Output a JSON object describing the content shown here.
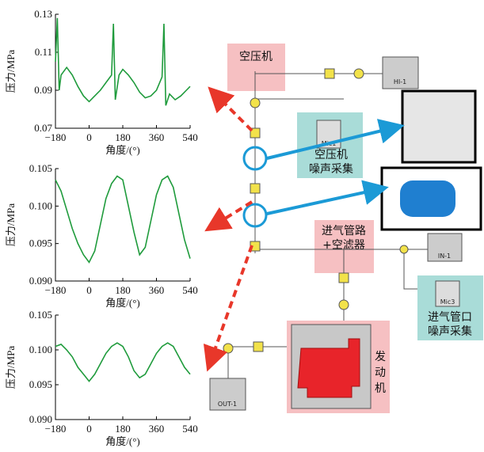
{
  "chart_data": [
    {
      "type": "line",
      "color": "#1f9b3c",
      "xlabel": "角度/(°)",
      "ylabel": "压力/MPa",
      "x": [
        -180,
        -170,
        -160,
        -150,
        -120,
        -90,
        -60,
        -30,
        0,
        30,
        60,
        90,
        120,
        130,
        140,
        160,
        180,
        210,
        240,
        270,
        300,
        330,
        360,
        390,
        400,
        410,
        430,
        460,
        490,
        520,
        540
      ],
      "values": [
        0.105,
        0.128,
        0.09,
        0.098,
        0.102,
        0.098,
        0.092,
        0.087,
        0.084,
        0.087,
        0.09,
        0.094,
        0.098,
        0.125,
        0.085,
        0.098,
        0.101,
        0.098,
        0.094,
        0.089,
        0.086,
        0.087,
        0.09,
        0.097,
        0.125,
        0.082,
        0.088,
        0.085,
        0.087,
        0.09,
        0.092
      ],
      "xlim": [
        -180,
        540
      ],
      "ylim": [
        0.07,
        0.13
      ],
      "xticks": [
        {
          "value": -180,
          "label": "−180"
        },
        0,
        180,
        360,
        540
      ],
      "yticks": [
        0.07,
        0.09,
        0.11,
        0.13
      ]
    },
    {
      "type": "line",
      "color": "#1f9b3c",
      "xlabel": "角度/(°)",
      "ylabel": "压力/MPa",
      "x": [
        -180,
        -150,
        -120,
        -90,
        -60,
        -30,
        0,
        30,
        60,
        90,
        120,
        150,
        180,
        210,
        240,
        270,
        300,
        330,
        360,
        390,
        420,
        450,
        480,
        510,
        540
      ],
      "values": [
        0.1035,
        0.102,
        0.0995,
        0.097,
        0.095,
        0.0935,
        0.0925,
        0.094,
        0.0975,
        0.101,
        0.103,
        0.104,
        0.1035,
        0.1,
        0.0965,
        0.0935,
        0.0945,
        0.098,
        0.1015,
        0.1035,
        0.104,
        0.1025,
        0.099,
        0.0955,
        0.093
      ],
      "xlim": [
        -180,
        540
      ],
      "ylim": [
        0.09,
        0.105
      ],
      "xticks": [
        {
          "value": -180,
          "label": "−180"
        },
        0,
        180,
        360,
        540
      ],
      "yticks": [
        {
          "value": 0.09,
          "label": "0.090"
        },
        {
          "value": 0.095,
          "label": "0.095"
        },
        {
          "value": 0.1,
          "label": "0.100"
        },
        {
          "value": 0.105,
          "label": "0.105"
        }
      ]
    },
    {
      "type": "line",
      "color": "#1f9b3c",
      "xlabel": "角度/(°)",
      "ylabel": "压力/MPa",
      "x": [
        -180,
        -150,
        -120,
        -90,
        -60,
        -30,
        0,
        30,
        60,
        90,
        120,
        150,
        180,
        210,
        240,
        270,
        300,
        330,
        360,
        390,
        420,
        450,
        480,
        510,
        540
      ],
      "values": [
        0.1005,
        0.1008,
        0.1,
        0.099,
        0.0975,
        0.0965,
        0.0955,
        0.0965,
        0.098,
        0.0995,
        0.1005,
        0.101,
        0.1005,
        0.099,
        0.097,
        0.096,
        0.0965,
        0.098,
        0.0995,
        0.1005,
        0.101,
        0.1005,
        0.099,
        0.0975,
        0.0965
      ],
      "xlim": [
        -180,
        540
      ],
      "ylim": [
        0.09,
        0.105
      ],
      "xticks": [
        {
          "value": -180,
          "label": "−180"
        },
        0,
        180,
        360,
        540
      ],
      "yticks": [
        {
          "value": 0.09,
          "label": "0.090"
        },
        {
          "value": 0.095,
          "label": "0.095"
        },
        {
          "value": 0.1,
          "label": "0.100"
        },
        {
          "value": 0.105,
          "label": "0.105"
        }
      ]
    }
  ],
  "diagram": {
    "compressor": "空压机",
    "compressor_noise": [
      "空压机",
      "噪声采集"
    ],
    "intake": [
      "进气管路",
      "+空滤器"
    ],
    "inlet_noise": [
      "进气管口",
      "噪声采集"
    ],
    "engine": [
      "发",
      "动",
      "机"
    ],
    "blocks": [
      "HI-1",
      "Mic1",
      "IN-1",
      "Mic3",
      "OUT-1"
    ]
  }
}
